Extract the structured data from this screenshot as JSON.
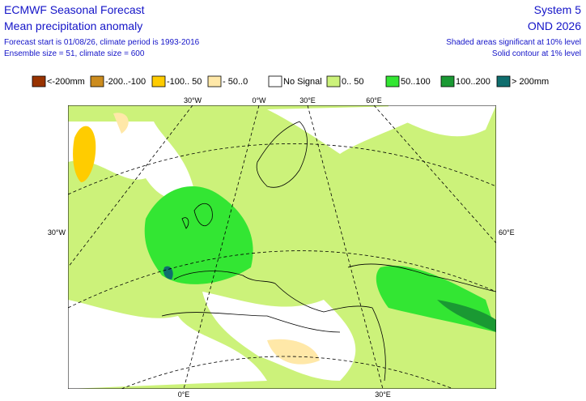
{
  "header": {
    "title": "ECMWF Seasonal Forecast",
    "subtitle": "Mean precipitation anomaly",
    "info": [
      "Forecast start is 01/08/26, climate period is 1993-2016",
      "Ensemble size = 51, climate size = 600"
    ],
    "system": "System 5",
    "period": "OND 2026",
    "notes": [
      "Shaded areas significant at 10% level",
      "Solid contour at 1% level"
    ]
  },
  "legend": [
    {
      "label": "<-200mm",
      "color": "#993300"
    },
    {
      "label": "-200..-100",
      "color": "#cc8c1e"
    },
    {
      "label": "-100.. 50",
      "color": "#ffcc00"
    },
    {
      "label": "- 50..0",
      "color": "#ffe8a8"
    },
    {
      "label": "No Signal",
      "color": "#ffffff"
    },
    {
      "label": "0.. 50",
      "color": "#ccf27a"
    },
    {
      "label": "50..100",
      "color": "#33e633"
    },
    {
      "label": "100..200",
      "color": "#1a9933"
    },
    {
      "label": "> 200mm",
      "color": "#0f6e6e"
    }
  ],
  "map_labels": {
    "top": [
      "30°W",
      "0°W",
      "30°E",
      "60°E"
    ],
    "left": "30°W",
    "right": "60°E",
    "bottom": [
      "0°E",
      "30°E"
    ]
  }
}
